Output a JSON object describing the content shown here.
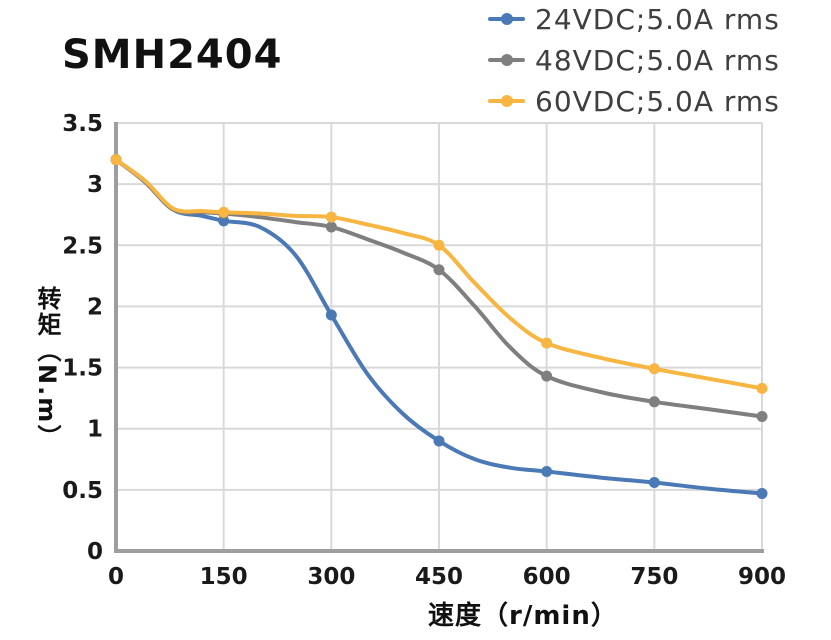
{
  "title": "SMH2404",
  "chart_data": {
    "type": "line",
    "title": "SMH2404",
    "xlabel": "速度（r/min）",
    "ylabel": "转矩（N.m）",
    "xlim": [
      0,
      900
    ],
    "ylim": [
      0,
      3.5
    ],
    "x_ticks": [
      0,
      150,
      300,
      450,
      600,
      750,
      900
    ],
    "y_ticks": [
      0,
      0.5,
      1,
      1.5,
      2,
      2.5,
      3,
      3.5
    ],
    "grid": true,
    "legend_position": "top-right",
    "marker_step": 150,
    "colors": {
      "grid": "#d9d9d9",
      "axis": "#9e9e9e",
      "tick_text": "#1a1a1a",
      "legend_text": "#3f3f3f"
    },
    "series": [
      {
        "name": "24VDC;5.0A rms",
        "color": "#4a79b5",
        "marker_values": {
          "0": 3.2,
          "150": 2.7,
          "300": 1.93,
          "450": 0.9,
          "600": 0.65,
          "750": 0.56,
          "900": 0.47
        },
        "points": [
          [
            0,
            3.2
          ],
          [
            40,
            3.02
          ],
          [
            80,
            2.79
          ],
          [
            120,
            2.74
          ],
          [
            150,
            2.7
          ],
          [
            200,
            2.65
          ],
          [
            250,
            2.42
          ],
          [
            300,
            1.93
          ],
          [
            350,
            1.45
          ],
          [
            400,
            1.12
          ],
          [
            450,
            0.9
          ],
          [
            500,
            0.75
          ],
          [
            550,
            0.68
          ],
          [
            600,
            0.65
          ],
          [
            675,
            0.6
          ],
          [
            750,
            0.56
          ],
          [
            825,
            0.51
          ],
          [
            900,
            0.47
          ]
        ]
      },
      {
        "name": "48VDC;5.0A rms",
        "color": "#7f7f7f",
        "marker_values": {
          "0": 3.2,
          "150": 2.76,
          "300": 2.65,
          "450": 2.3,
          "600": 1.43,
          "750": 1.22,
          "900": 1.1
        },
        "points": [
          [
            0,
            3.2
          ],
          [
            40,
            3.02
          ],
          [
            80,
            2.79
          ],
          [
            120,
            2.77
          ],
          [
            150,
            2.76
          ],
          [
            200,
            2.73
          ],
          [
            250,
            2.69
          ],
          [
            300,
            2.65
          ],
          [
            350,
            2.55
          ],
          [
            400,
            2.44
          ],
          [
            450,
            2.3
          ],
          [
            500,
            2.0
          ],
          [
            550,
            1.66
          ],
          [
            600,
            1.43
          ],
          [
            675,
            1.3
          ],
          [
            750,
            1.22
          ],
          [
            825,
            1.16
          ],
          [
            900,
            1.1
          ]
        ]
      },
      {
        "name": "60VDC;5.0A rms",
        "color": "#f7b541",
        "marker_values": {
          "0": 3.2,
          "150": 2.77,
          "300": 2.73,
          "450": 2.5,
          "600": 1.7,
          "750": 1.49,
          "900": 1.33
        },
        "points": [
          [
            0,
            3.2
          ],
          [
            40,
            3.03
          ],
          [
            80,
            2.8
          ],
          [
            120,
            2.78
          ],
          [
            150,
            2.77
          ],
          [
            200,
            2.76
          ],
          [
            250,
            2.74
          ],
          [
            300,
            2.73
          ],
          [
            350,
            2.67
          ],
          [
            400,
            2.6
          ],
          [
            450,
            2.5
          ],
          [
            500,
            2.19
          ],
          [
            550,
            1.9
          ],
          [
            600,
            1.7
          ],
          [
            675,
            1.58
          ],
          [
            750,
            1.49
          ],
          [
            825,
            1.41
          ],
          [
            900,
            1.33
          ]
        ]
      }
    ]
  }
}
